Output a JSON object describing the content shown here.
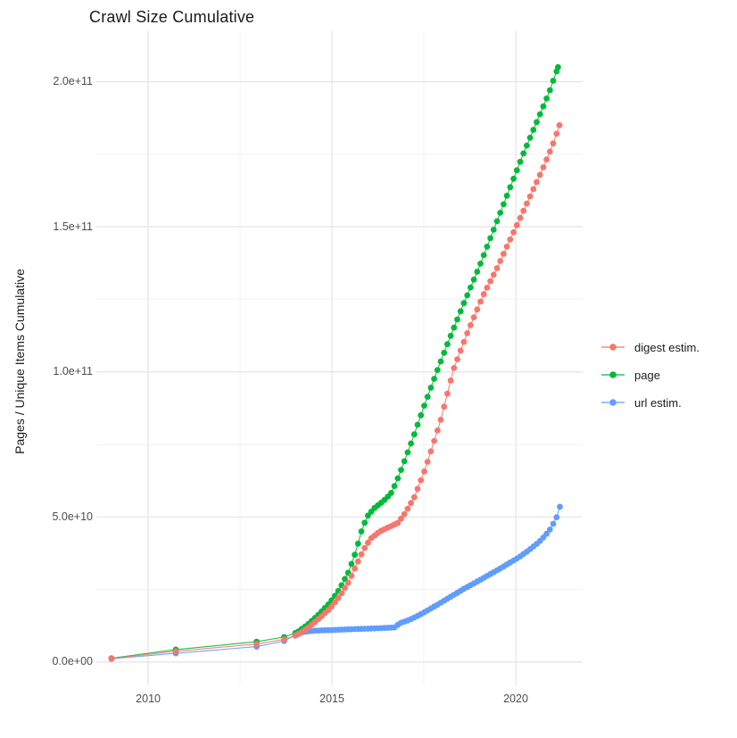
{
  "title": "Crawl Size Cumulative",
  "y_axis_title": "Pages / Unique Items Cumulative",
  "legend": {
    "items": [
      {
        "label": "digest estim.",
        "color": "#F8766D",
        "series": "digest"
      },
      {
        "label": "page",
        "color": "#00BA38",
        "series": "page"
      },
      {
        "label": "url estim.",
        "color": "#619CFF",
        "series": "url"
      }
    ]
  },
  "chart_data": {
    "type": "scatter",
    "title": "Crawl Size Cumulative",
    "xlabel": "",
    "ylabel": "Pages / Unique Items Cumulative",
    "x_domain": [
      2008.59,
      2021.82
    ],
    "y_domain": [
      -10200000000,
      217400000000
    ],
    "x_major_ticks": [
      2010,
      2015,
      2020
    ],
    "x_tick_labels": [
      "2010",
      "2015",
      "2020"
    ],
    "x_minor_ticks": [
      2012.5,
      2017.5,
      2022.5
    ],
    "y_major_ticks": [
      0,
      50000000000.0,
      100000000000.0,
      150000000000.0,
      200000000000.0
    ],
    "y_tick_labels": [
      "0.0e+00",
      "5.0e+10",
      "1.0e+11",
      "1.5e+11",
      "2.0e+11"
    ],
    "y_minor_ticks": [
      25000000000.0,
      75000000000.0,
      125000000000.0,
      175000000000.0
    ],
    "grid": "on",
    "legend_position": "right",
    "marker_radius_px": 3.4,
    "point_spacing_years": 0.09,
    "sparse_before_year": 2013.9,
    "series": [
      {
        "name": "page",
        "color": "#00BA38",
        "points": [
          [
            2009.0,
            1300000000.0
          ],
          [
            2010.75,
            4300000000.0
          ],
          [
            2012.95,
            7000000000.0
          ],
          [
            2013.7,
            8600000000.0
          ],
          [
            2014.05,
            10200000000.0
          ],
          [
            2014.35,
            13000000000.0
          ],
          [
            2014.65,
            16500000000.0
          ],
          [
            2014.95,
            20500000000.0
          ],
          [
            2015.2,
            25000000000.0
          ],
          [
            2015.45,
            31000000000.0
          ],
          [
            2015.65,
            38000000000.0
          ],
          [
            2015.8,
            45000000000.0
          ],
          [
            2015.95,
            50000000000.0
          ],
          [
            2016.15,
            53000000000.0
          ],
          [
            2016.4,
            55500000000.0
          ],
          [
            2016.6,
            58000000000.0
          ],
          [
            2016.75,
            62000000000.0
          ],
          [
            2016.92,
            67500000000.0
          ],
          [
            2017.2,
            77000000000.0
          ],
          [
            2017.5,
            88000000000.0
          ],
          [
            2017.85,
            100000000000.0
          ],
          [
            2018.2,
            111500000000.0
          ],
          [
            2018.6,
            124000000000.0
          ],
          [
            2019.0,
            136000000000.0
          ],
          [
            2019.4,
            149000000000.0
          ],
          [
            2019.8,
            162000000000.0
          ],
          [
            2020.2,
            175000000000.0
          ],
          [
            2020.6,
            187000000000.0
          ],
          [
            2020.9,
            196000000000.0
          ],
          [
            2021.15,
            205000000000.0
          ]
        ]
      },
      {
        "name": "url",
        "color": "#619CFF",
        "points": [
          [
            2009.0,
            1100000000.0
          ],
          [
            2010.75,
            3000000000.0
          ],
          [
            2012.95,
            5300000000.0
          ],
          [
            2013.7,
            7200000000.0
          ],
          [
            2014.0,
            9200000000.0
          ],
          [
            2014.2,
            10300000000.0
          ],
          [
            2014.5,
            10800000000.0
          ],
          [
            2015.0,
            11000000000.0
          ],
          [
            2015.5,
            11300000000.0
          ],
          [
            2016.0,
            11500000000.0
          ],
          [
            2016.4,
            11700000000.0
          ],
          [
            2016.7,
            11900000000.0
          ],
          [
            2016.85,
            13400000000.0
          ],
          [
            2017.1,
            14500000000.0
          ],
          [
            2017.35,
            16000000000.0
          ],
          [
            2017.6,
            17800000000.0
          ],
          [
            2017.85,
            19600000000.0
          ],
          [
            2018.1,
            21500000000.0
          ],
          [
            2018.35,
            23400000000.0
          ],
          [
            2018.6,
            25300000000.0
          ],
          [
            2018.85,
            27000000000.0
          ],
          [
            2019.1,
            28800000000.0
          ],
          [
            2019.35,
            30600000000.0
          ],
          [
            2019.6,
            32400000000.0
          ],
          [
            2019.85,
            34300000000.0
          ],
          [
            2020.1,
            36200000000.0
          ],
          [
            2020.35,
            38500000000.0
          ],
          [
            2020.6,
            41000000000.0
          ],
          [
            2020.8,
            43500000000.0
          ],
          [
            2020.95,
            46000000000.0
          ],
          [
            2021.1,
            49500000000.0
          ],
          [
            2021.2,
            53500000000.0
          ]
        ]
      },
      {
        "name": "digest",
        "color": "#F8766D",
        "points": [
          [
            2009.0,
            1200000000.0
          ],
          [
            2010.75,
            3700000000.0
          ],
          [
            2012.95,
            6200000000.0
          ],
          [
            2013.7,
            7800000000.0
          ],
          [
            2014.05,
            9300000000.0
          ],
          [
            2014.35,
            11800000000.0
          ],
          [
            2014.65,
            15000000000.0
          ],
          [
            2014.95,
            18500000000.0
          ],
          [
            2015.2,
            22500000000.0
          ],
          [
            2015.45,
            27500000000.0
          ],
          [
            2015.65,
            33000000000.0
          ],
          [
            2015.85,
            38500000000.0
          ],
          [
            2016.05,
            42500000000.0
          ],
          [
            2016.3,
            45000000000.0
          ],
          [
            2016.55,
            46500000000.0
          ],
          [
            2016.8,
            48000000000.0
          ],
          [
            2017.0,
            51500000000.0
          ],
          [
            2017.25,
            57000000000.0
          ],
          [
            2017.55,
            67000000000.0
          ],
          [
            2017.95,
            83000000000.0
          ],
          [
            2018.31,
            101000000000.0
          ],
          [
            2018.7,
            114000000000.0
          ],
          [
            2019.1,
            126000000000.0
          ],
          [
            2019.5,
            136000000000.0
          ],
          [
            2019.9,
            147000000000.0
          ],
          [
            2020.3,
            158000000000.0
          ],
          [
            2020.7,
            169000000000.0
          ],
          [
            2021.0,
            178000000000.0
          ],
          [
            2021.19,
            185000000000.0
          ]
        ]
      }
    ]
  }
}
